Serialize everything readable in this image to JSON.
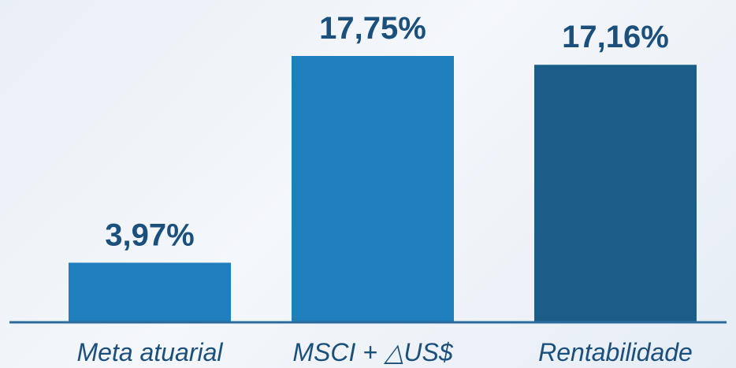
{
  "chart_data": {
    "type": "bar",
    "categories": [
      "Meta atuarial",
      "MSCI + △US$",
      "Rentabilidade"
    ],
    "values": [
      3.97,
      17.75,
      17.16
    ],
    "value_labels": [
      "3,97%",
      "17,75%",
      "17,16%"
    ],
    "bar_colors": [
      "#1f7fbd",
      "#1f7fbd",
      "#1b5d88"
    ],
    "axis_color": "#2a6a9c",
    "label_color": "#1b4f7c",
    "ylim": [
      0,
      20
    ],
    "grid": false,
    "legend": "none"
  }
}
